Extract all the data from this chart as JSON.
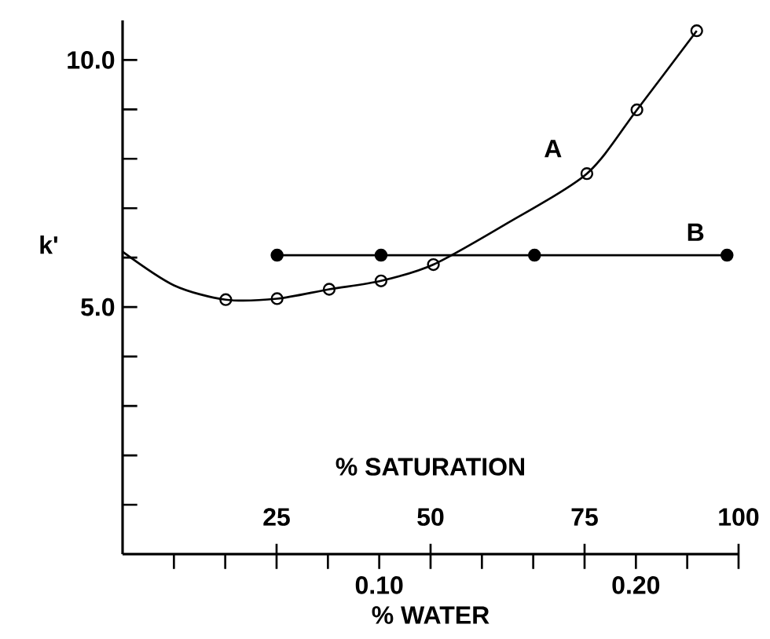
{
  "chart_data": {
    "type": "line",
    "xlabel": "% WATER",
    "x2label": "% SATURATION",
    "ylabel": "k'",
    "xlim": [
      0,
      0.24
    ],
    "xticks": [
      {
        "value": 0.02,
        "label": null
      },
      {
        "value": 0.04,
        "label": null
      },
      {
        "value": 0.06,
        "label": null
      },
      {
        "value": 0.08,
        "label": null
      },
      {
        "value": 0.1,
        "label": "0.10"
      },
      {
        "value": 0.12,
        "label": null
      },
      {
        "value": 0.14,
        "label": null
      },
      {
        "value": 0.16,
        "label": null
      },
      {
        "value": 0.18,
        "label": null
      },
      {
        "value": 0.2,
        "label": "0.20"
      },
      {
        "value": 0.22,
        "label": null
      },
      {
        "value": 0.24,
        "label": null
      }
    ],
    "x2lim": [
      0,
      100
    ],
    "x2ticks": [
      25,
      50,
      75,
      100
    ],
    "ylim": [
      0,
      10.8
    ],
    "yticks": [
      {
        "value": 1,
        "label": null
      },
      {
        "value": 2,
        "label": null
      },
      {
        "value": 3,
        "label": null
      },
      {
        "value": 4,
        "label": null
      },
      {
        "value": 5,
        "label": "5.0"
      },
      {
        "value": 6,
        "label": null
      },
      {
        "value": 7,
        "label": null
      },
      {
        "value": 8,
        "label": null
      },
      {
        "value": 9,
        "label": null
      },
      {
        "value": 10,
        "label": "10.0"
      }
    ],
    "grid": false,
    "series": [
      {
        "marker": "none",
        "color": "#000000",
        "x": [
          0,
          0.02,
          0.0402,
          0.0602,
          0.0805,
          0.1007,
          0.1211,
          0.15,
          0.1809,
          0.2004,
          0.2237
        ],
        "values": [
          6.12,
          5.44,
          5.15,
          5.17,
          5.36,
          5.53,
          5.86,
          6.7,
          7.7,
          8.99,
          10.59
        ]
      },
      {
        "type": "scatter",
        "name": "A",
        "marker": "circle",
        "color": "#000000",
        "x": [
          0.0402,
          0.0602,
          0.0805,
          0.1007,
          0.1211,
          0.1809,
          0.2004,
          0.2237
        ],
        "values": [
          5.15,
          5.17,
          5.36,
          5.53,
          5.86,
          7.7,
          8.99,
          10.59
        ]
      },
      {
        "type": "line",
        "name": "B",
        "marker": "circle",
        "color": "#000000",
        "x": [
          0.0602,
          0.1007,
          0.1605,
          0.2355
        ],
        "values": [
          6.05,
          6.05,
          6.05,
          6.05
        ]
      }
    ]
  }
}
